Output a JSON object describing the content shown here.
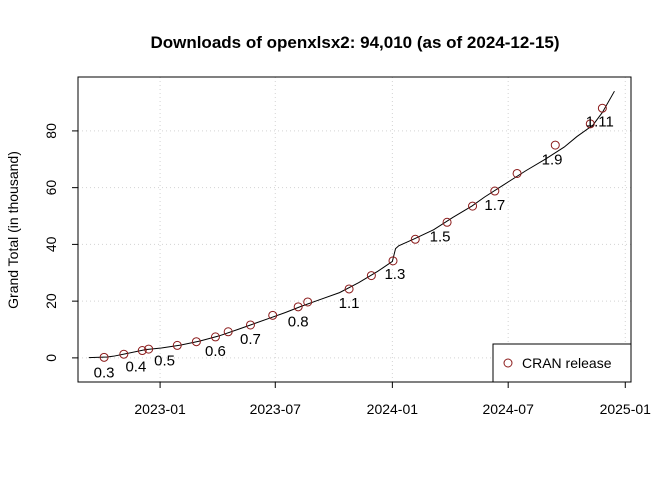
{
  "chart_data": {
    "type": "line",
    "title": "Downloads of openxlsx2: 94,010 (as of 2024-12-15)",
    "xlabel": "",
    "ylabel": "Grand Total (in thousand)",
    "xlim": [
      "2022-08-25",
      "2025-01-10"
    ],
    "ylim": [
      -8.5,
      99
    ],
    "xticks": [
      {
        "date": "2023-01-01",
        "label": "2023-01"
      },
      {
        "date": "2023-07-01",
        "label": "2023-07"
      },
      {
        "date": "2024-01-01",
        "label": "2024-01"
      },
      {
        "date": "2024-07-01",
        "label": "2024-07"
      },
      {
        "date": "2025-01-01",
        "label": "2025-01"
      }
    ],
    "yticks": [
      0,
      20,
      40,
      60,
      80
    ],
    "grid": true,
    "series": [
      {
        "line_color": "#000000",
        "points": [
          [
            "2022-09-11",
            0.1
          ],
          [
            "2022-10-10",
            0.3
          ],
          [
            "2022-10-20",
            0.6
          ],
          [
            "2022-11-09",
            1.5
          ],
          [
            "2022-12-09",
            2.9
          ],
          [
            "2023-01-03",
            3.5
          ],
          [
            "2023-02-02",
            4.5
          ],
          [
            "2023-03-04",
            5.9
          ],
          [
            "2023-04-03",
            7.7
          ],
          [
            "2023-05-03",
            10.0
          ],
          [
            "2023-05-23",
            11.6
          ],
          [
            "2023-06-22",
            14.0
          ],
          [
            "2023-07-17",
            16.0
          ],
          [
            "2023-08-11",
            18.2
          ],
          [
            "2023-09-05",
            20.2
          ],
          [
            "2023-10-10",
            23.0
          ],
          [
            "2023-11-09",
            26.5
          ],
          [
            "2023-12-09",
            30.5
          ],
          [
            "2024-01-01",
            34.0
          ],
          [
            "2024-01-06",
            38.5
          ],
          [
            "2024-01-11",
            39.5
          ],
          [
            "2024-02-05",
            42.0
          ],
          [
            "2024-03-06",
            45.2
          ],
          [
            "2024-04-05",
            49.5
          ],
          [
            "2024-05-05",
            53.5
          ],
          [
            "2024-05-25",
            56.7
          ],
          [
            "2024-06-24",
            61.0
          ],
          [
            "2024-07-29",
            66.0
          ],
          [
            "2024-08-28",
            70.0
          ],
          [
            "2024-09-27",
            74.3
          ],
          [
            "2024-10-17",
            78.0
          ],
          [
            "2024-11-11",
            82.0
          ],
          [
            "2024-11-26",
            86.5
          ],
          [
            "2024-12-15",
            94.0
          ]
        ]
      }
    ],
    "releases": {
      "name": "CRAN release",
      "marker": "open-circle",
      "color": "#8b1a1a",
      "points": [
        [
          "2022-10-05",
          0.2
        ],
        [
          "2022-11-05",
          1.3
        ],
        [
          "2022-12-04",
          2.6
        ],
        [
          "2022-12-14",
          3.1
        ],
        [
          "2023-01-28",
          4.4
        ],
        [
          "2023-02-27",
          5.7
        ],
        [
          "2023-03-29",
          7.4
        ],
        [
          "2023-04-18",
          9.2
        ],
        [
          "2023-05-23",
          11.6
        ],
        [
          "2023-06-27",
          15.0
        ],
        [
          "2023-08-06",
          18.0
        ],
        [
          "2023-08-21",
          19.7
        ],
        [
          "2023-10-25",
          24.3
        ],
        [
          "2023-11-29",
          29.0
        ],
        [
          "2024-01-02",
          34.2
        ],
        [
          "2024-02-06",
          41.8
        ],
        [
          "2024-03-27",
          47.8
        ],
        [
          "2024-05-06",
          53.5
        ],
        [
          "2024-06-10",
          58.8
        ],
        [
          "2024-07-15",
          65.0
        ],
        [
          "2024-09-13",
          75.0
        ],
        [
          "2024-11-07",
          82.5
        ],
        [
          "2024-11-26",
          88.0
        ]
      ]
    },
    "annotations": [
      {
        "text": "0.3",
        "date": "2022-10-05",
        "y": -5.2
      },
      {
        "text": "0.4",
        "date": "2022-11-24",
        "y": -3.0
      },
      {
        "text": "0.5",
        "date": "2023-01-08",
        "y": -1.0
      },
      {
        "text": "0.6",
        "date": "2023-03-29",
        "y": 2.4
      },
      {
        "text": "0.7",
        "date": "2023-05-23",
        "y": 6.6
      },
      {
        "text": "0.8",
        "date": "2023-08-06",
        "y": 12.8
      },
      {
        "text": "1.1",
        "date": "2023-10-25",
        "y": 19.3
      },
      {
        "text": "1.3",
        "date": "2024-01-05",
        "y": 29.5
      },
      {
        "text": "1.5",
        "date": "2024-03-16",
        "y": 42.8
      },
      {
        "text": "1.7",
        "date": "2024-06-10",
        "y": 53.8
      },
      {
        "text": "1.9",
        "date": "2024-09-08",
        "y": 70.0
      },
      {
        "text": "1.11",
        "date": "2024-11-22",
        "y": 83.3
      }
    ],
    "legend": {
      "position": "bottom-right",
      "entries": [
        "CRAN release"
      ]
    }
  }
}
